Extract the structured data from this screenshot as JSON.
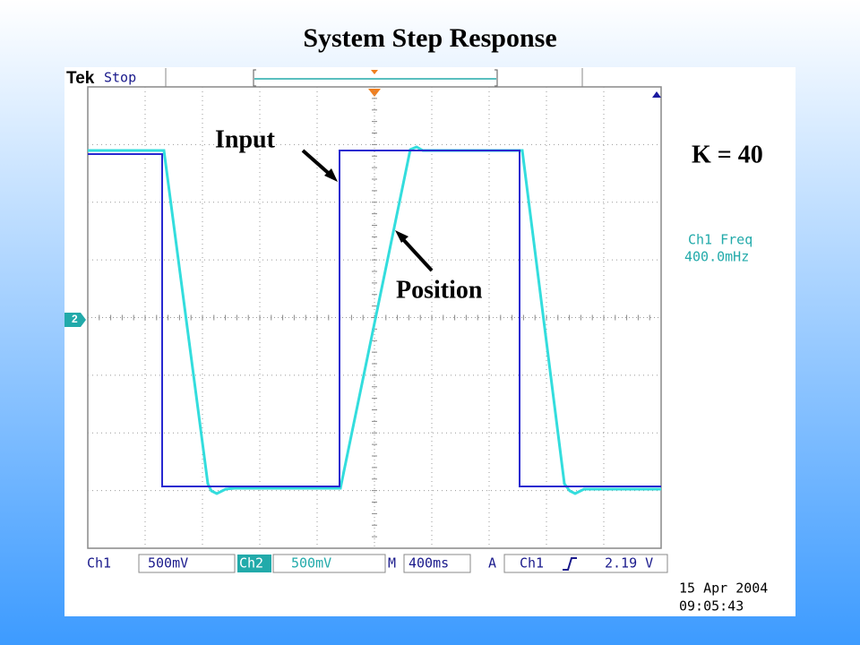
{
  "title": "System Step Response",
  "scope": {
    "brand": "Tek",
    "status": "Stop",
    "channel_marker": "2",
    "labels": {
      "input": "Input",
      "position": "Position",
      "gain": "K = 40"
    },
    "measurement": {
      "name": "Ch1 Freq",
      "value": "400.0mHz"
    },
    "status_bar": {
      "ch1": "Ch1",
      "ch1_scale": "500mV",
      "ch2": "Ch2",
      "ch2_scale": "500mV",
      "m": "M",
      "timebase": "400ms",
      "a": "A",
      "trigger_source": "Ch1",
      "trigger_level": "2.19 V"
    },
    "date": "15 Apr 2004",
    "time": "09:05:43"
  }
}
